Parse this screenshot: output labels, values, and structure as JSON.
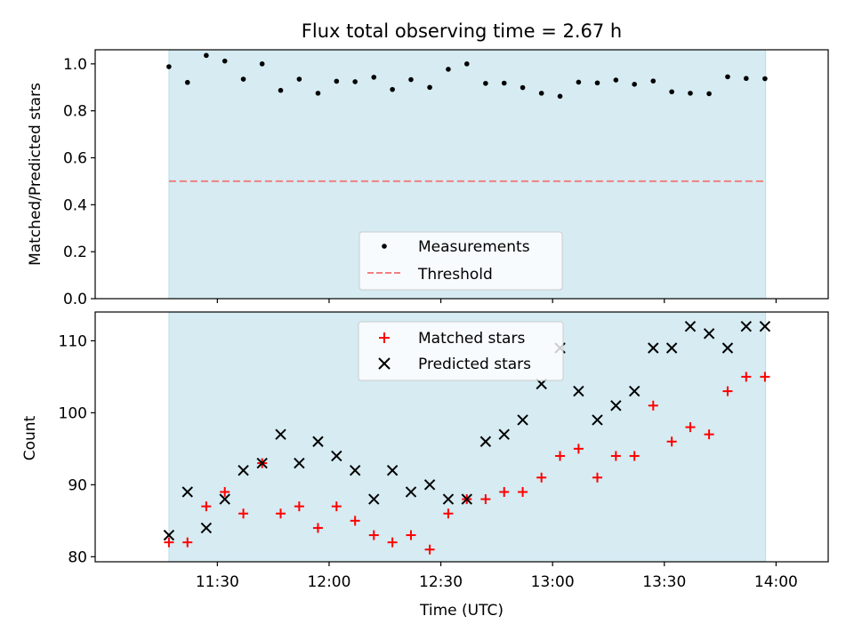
{
  "figure": {
    "title": "Flux total observing time = 2.67 h",
    "shade_color": "#add8e6",
    "threshold_color": "#f08080",
    "matched_color": "#ff0000",
    "predicted_color": "#000000",
    "measure_color": "#000000"
  },
  "chart_data": [
    {
      "type": "scatter",
      "panel": "top",
      "title": "Flux total observing time = 2.67 h",
      "xlabel": "",
      "ylabel": "Matched/Predicted stars",
      "xlim": [
        -0.33,
        2.95
      ],
      "ylim": [
        0,
        1.06
      ],
      "yticks": [
        0.0,
        0.2,
        0.4,
        0.6,
        0.8,
        1.0
      ],
      "ytick_labels": [
        "0.0",
        "0.2",
        "0.4",
        "0.6",
        "0.8",
        "1.0"
      ],
      "shaded_span": [
        0.0,
        2.67
      ],
      "threshold": 0.5,
      "legend_position": "lower center",
      "legend": [
        "Measurements",
        "Threshold"
      ],
      "x": [
        0.0,
        0.083,
        0.167,
        0.25,
        0.333,
        0.417,
        0.5,
        0.583,
        0.667,
        0.75,
        0.833,
        0.917,
        1.0,
        1.083,
        1.167,
        1.25,
        1.333,
        1.417,
        1.5,
        1.583,
        1.667,
        1.75,
        1.833,
        1.917,
        2.0,
        2.083,
        2.167,
        2.25,
        2.333,
        2.417,
        2.5,
        2.583,
        2.667
      ],
      "series": [
        {
          "name": "Measurements",
          "values": [
            0.988,
            0.921,
            1.036,
            1.012,
            0.935,
            1.0,
            0.887,
            0.935,
            0.875,
            0.926,
            0.924,
            0.943,
            0.891,
            0.933,
            0.9,
            0.977,
            1.0,
            0.917,
            0.918,
            0.899,
            0.875,
            0.862,
            0.922,
            0.919,
            0.931,
            0.913,
            0.927,
            0.881,
            0.875,
            0.873,
            0.945,
            0.938,
            0.937
          ]
        },
        {
          "name": "Threshold",
          "values": [
            0.5,
            0.5
          ]
        }
      ]
    },
    {
      "type": "scatter",
      "panel": "bottom",
      "xlabel": "Time (UTC)",
      "ylabel": "Count",
      "xlim": [
        -0.33,
        2.95
      ],
      "ylim": [
        79.3,
        114.0
      ],
      "yticks": [
        80,
        90,
        100,
        110
      ],
      "ytick_labels": [
        "80",
        "90",
        "100",
        "110"
      ],
      "xticks": [
        0.2167,
        0.7167,
        1.2167,
        1.7167,
        2.2167,
        2.7167
      ],
      "xtick_labels": [
        "11:30",
        "12:00",
        "12:30",
        "13:00",
        "13:30",
        "14:00"
      ],
      "shaded_span": [
        0.0,
        2.67
      ],
      "legend_position": "upper center",
      "legend": [
        "Matched stars",
        "Predicted stars"
      ],
      "x": [
        0.0,
        0.083,
        0.167,
        0.25,
        0.333,
        0.417,
        0.5,
        0.583,
        0.667,
        0.75,
        0.833,
        0.917,
        1.0,
        1.083,
        1.167,
        1.25,
        1.333,
        1.417,
        1.5,
        1.583,
        1.667,
        1.75,
        1.833,
        1.917,
        2.0,
        2.083,
        2.167,
        2.25,
        2.333,
        2.417,
        2.5,
        2.583,
        2.667
      ],
      "series": [
        {
          "name": "Matched stars",
          "values": [
            82,
            82,
            87,
            89,
            86,
            93,
            86,
            87,
            84,
            87,
            85,
            83,
            82,
            83,
            81,
            86,
            88,
            88,
            89,
            89,
            91,
            94,
            95,
            91,
            94,
            94,
            101,
            96,
            98,
            97,
            103,
            105,
            105
          ]
        },
        {
          "name": "Predicted stars",
          "values": [
            83,
            89,
            84,
            88,
            92,
            93,
            97,
            93,
            96,
            94,
            92,
            88,
            92,
            89,
            90,
            88,
            88,
            96,
            97,
            99,
            104,
            109,
            103,
            99,
            101,
            103,
            109,
            109,
            112,
            111,
            109,
            112,
            112
          ]
        }
      ]
    }
  ]
}
